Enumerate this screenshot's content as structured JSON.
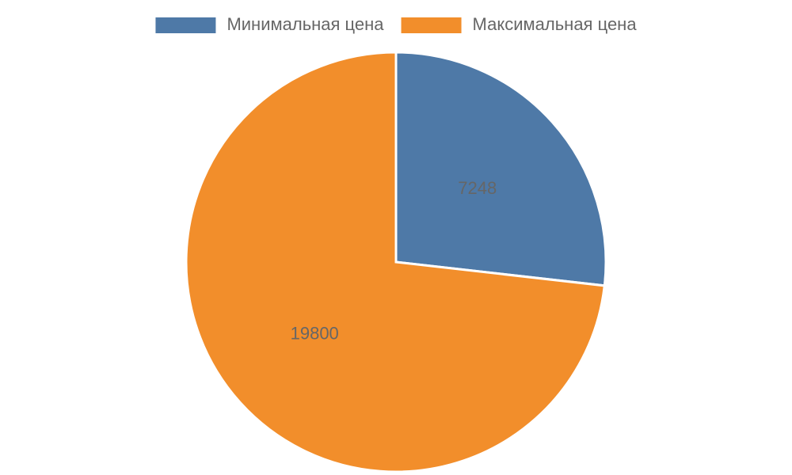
{
  "chart_data": {
    "type": "pie",
    "categories": [
      "Минимальная цена",
      "Максимальная цена"
    ],
    "values": [
      7248,
      19800
    ],
    "colors": [
      "#4e79a7",
      "#f28e2b"
    ],
    "legend": "top"
  }
}
